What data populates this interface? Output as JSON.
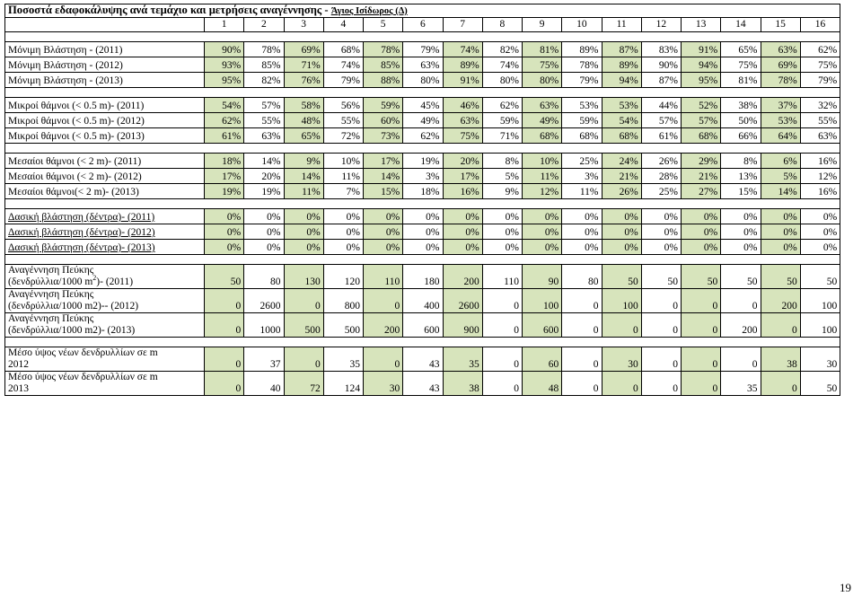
{
  "title": "Ποσοστά εδαφοκάλυψης ανά τεμάχιο και μετρήσεις αναγέννησης - ",
  "title_site": "Άγιος Ισίδωρος (Δ)",
  "columns": [
    "1",
    "2",
    "3",
    "4",
    "5",
    "6",
    "7",
    "8",
    "9",
    "10",
    "11",
    "12",
    "13",
    "14",
    "15",
    "16"
  ],
  "green_fill": "#d7e4bc",
  "groups": [
    {
      "rows": [
        {
          "label": "Μόνιμη Βλάστηση - (2011)",
          "values": [
            "90%",
            "78%",
            "69%",
            "68%",
            "78%",
            "79%",
            "74%",
            "82%",
            "81%",
            "89%",
            "87%",
            "83%",
            "91%",
            "65%",
            "63%",
            "62%"
          ]
        },
        {
          "label": "Μόνιμη Βλάστηση - (2012)",
          "values": [
            "93%",
            "85%",
            "71%",
            "74%",
            "85%",
            "63%",
            "89%",
            "74%",
            "75%",
            "78%",
            "89%",
            "90%",
            "94%",
            "75%",
            "69%",
            "75%"
          ]
        },
        {
          "label": "Μόνιμη Βλάστηση - (2013)",
          "values": [
            "95%",
            "82%",
            "76%",
            "79%",
            "88%",
            "80%",
            "91%",
            "80%",
            "80%",
            "79%",
            "94%",
            "87%",
            "95%",
            "81%",
            "78%",
            "79%"
          ]
        }
      ]
    },
    {
      "rows": [
        {
          "label": "Μικροί θάμνοι (< 0.5 m)- (2011)",
          "values": [
            "54%",
            "57%",
            "58%",
            "56%",
            "59%",
            "45%",
            "46%",
            "62%",
            "63%",
            "53%",
            "53%",
            "44%",
            "52%",
            "38%",
            "37%",
            "32%"
          ]
        },
        {
          "label": "Μικροί θάμνοι (< 0.5 m)- (2012)",
          "values": [
            "62%",
            "55%",
            "48%",
            "55%",
            "60%",
            "49%",
            "63%",
            "59%",
            "49%",
            "59%",
            "54%",
            "57%",
            "57%",
            "50%",
            "53%",
            "55%"
          ]
        },
        {
          "label": "Μικροί θάμνοι (< 0.5 m)- (2013)",
          "values": [
            "61%",
            "63%",
            "65%",
            "72%",
            "73%",
            "62%",
            "75%",
            "71%",
            "68%",
            "68%",
            "68%",
            "61%",
            "68%",
            "66%",
            "64%",
            "63%"
          ]
        }
      ]
    },
    {
      "rows": [
        {
          "label": "Μεσαίοι θάμνοι (< 2 m)- (2011)",
          "values": [
            "18%",
            "14%",
            "9%",
            "10%",
            "17%",
            "19%",
            "20%",
            "8%",
            "10%",
            "25%",
            "24%",
            "26%",
            "29%",
            "8%",
            "6%",
            "16%"
          ]
        },
        {
          "label": "Μεσαίοι θάμνοι (< 2 m)- (2012)",
          "values": [
            "17%",
            "20%",
            "14%",
            "11%",
            "14%",
            "3%",
            "17%",
            "5%",
            "11%",
            "3%",
            "21%",
            "28%",
            "21%",
            "13%",
            "5%",
            "12%"
          ]
        },
        {
          "label": "Μεσαίοι θάμνοι(< 2 m)- (2013)",
          "values": [
            "19%",
            "19%",
            "11%",
            "7%",
            "15%",
            "18%",
            "16%",
            "9%",
            "12%",
            "11%",
            "26%",
            "25%",
            "27%",
            "15%",
            "14%",
            "16%"
          ]
        }
      ]
    },
    {
      "rows": [
        {
          "label": "Δασική βλάστηση (δέντρα)- (2011)",
          "underline": true,
          "values": [
            "0%",
            "0%",
            "0%",
            "0%",
            "0%",
            "0%",
            "0%",
            "0%",
            "0%",
            "0%",
            "0%",
            "0%",
            "0%",
            "0%",
            "0%",
            "0%"
          ]
        },
        {
          "label": "Δασική βλάστηση (δέντρα)- (2012)",
          "underline": true,
          "values": [
            "0%",
            "0%",
            "0%",
            "0%",
            "0%",
            "0%",
            "0%",
            "0%",
            "0%",
            "0%",
            "0%",
            "0%",
            "0%",
            "0%",
            "0%",
            "0%"
          ]
        },
        {
          "label": "Δασική βλάστηση (δέντρα)- (2013)",
          "underline": true,
          "values": [
            "0%",
            "0%",
            "0%",
            "0%",
            "0%",
            "0%",
            "0%",
            "0%",
            "0%",
            "0%",
            "0%",
            "0%",
            "0%",
            "0%",
            "0%",
            "0%"
          ]
        }
      ]
    },
    {
      "rows": [
        {
          "label_line1": "Αναγέννηση Πεύκης",
          "label_line2a": "(δενδρύλλια/1000 m",
          "label_sup": "2",
          "label_line2b": ")- (2011)",
          "values": [
            "50",
            "80",
            "130",
            "120",
            "110",
            "180",
            "200",
            "110",
            "90",
            "80",
            "50",
            "50",
            "50",
            "50",
            "50",
            "50"
          ]
        },
        {
          "label_line1": "Αναγέννηση Πεύκης",
          "label_line2a": "(δενδρύλλια/1000 m2)-- (2012)",
          "label_sup": "",
          "label_line2b": "",
          "values": [
            "0",
            "2600",
            "0",
            "800",
            "0",
            "400",
            "2600",
            "0",
            "100",
            "0",
            "100",
            "0",
            "0",
            "0",
            "200",
            "100"
          ]
        },
        {
          "label_line1": "Αναγέννηση Πεύκης",
          "label_line2a": "(δενδρύλλια/1000 m2)- (2013)",
          "label_sup": "",
          "label_line2b": "",
          "values": [
            "0",
            "1000",
            "500",
            "500",
            "200",
            "600",
            "900",
            "0",
            "600",
            "0",
            "0",
            "0",
            "0",
            "200",
            "0",
            "100"
          ]
        }
      ]
    },
    {
      "rows": [
        {
          "label_line1": "Μέσο ύψος νέων δενδρυλλίων σε m",
          "label_line2a": "2012",
          "label_sup": "",
          "label_line2b": "",
          "values": [
            "0",
            "37",
            "0",
            "35",
            "0",
            "43",
            "35",
            "0",
            "60",
            "0",
            "30",
            "0",
            "0",
            "0",
            "38",
            "30"
          ]
        },
        {
          "label_line1": "Μέσο ύψος νέων δενδρυλλίων σε m",
          "label_line2a": "2013",
          "label_sup": "",
          "label_line2b": "",
          "values": [
            "0",
            "40",
            "72",
            "124",
            "30",
            "43",
            "38",
            "0",
            "48",
            "0",
            "0",
            "0",
            "0",
            "35",
            "0",
            "50"
          ]
        }
      ]
    }
  ],
  "page_number": "19"
}
